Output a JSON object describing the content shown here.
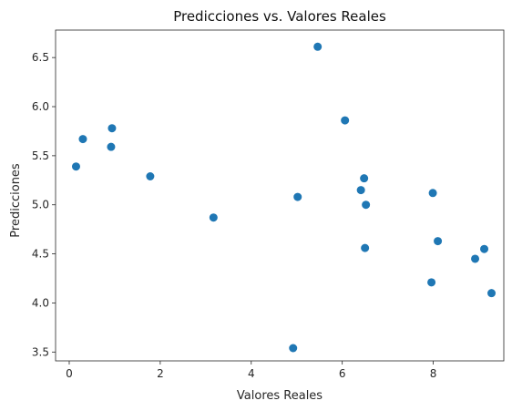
{
  "chart_data": {
    "type": "scatter",
    "title": "Predicciones vs. Valores Reales",
    "xlabel": "Valores Reales",
    "ylabel": "Predicciones",
    "xlim": [
      -0.3,
      9.55
    ],
    "ylim": [
      3.41,
      6.78
    ],
    "xticks": [
      0,
      2,
      4,
      6,
      8
    ],
    "xtick_labels": [
      "0",
      "2",
      "4",
      "6",
      "8"
    ],
    "yticks": [
      3.5,
      4.0,
      4.5,
      5.0,
      5.5,
      6.0,
      6.5
    ],
    "ytick_labels": [
      "3.5",
      "4.0",
      "4.5",
      "5.0",
      "5.5",
      "6.0",
      "6.5"
    ],
    "grid": false,
    "legend": false,
    "color": "#1f77b4",
    "x": [
      0.15,
      0.3,
      0.92,
      0.94,
      1.78,
      3.17,
      4.92,
      5.02,
      5.46,
      6.06,
      6.41,
      6.48,
      6.5,
      6.52,
      7.96,
      7.99,
      8.1,
      8.92,
      9.12,
      9.28
    ],
    "y": [
      5.39,
      5.67,
      5.59,
      5.78,
      5.29,
      4.87,
      3.54,
      5.08,
      6.61,
      5.86,
      5.15,
      5.27,
      4.56,
      5.0,
      4.21,
      5.12,
      4.63,
      4.45,
      4.55,
      4.1
    ]
  }
}
